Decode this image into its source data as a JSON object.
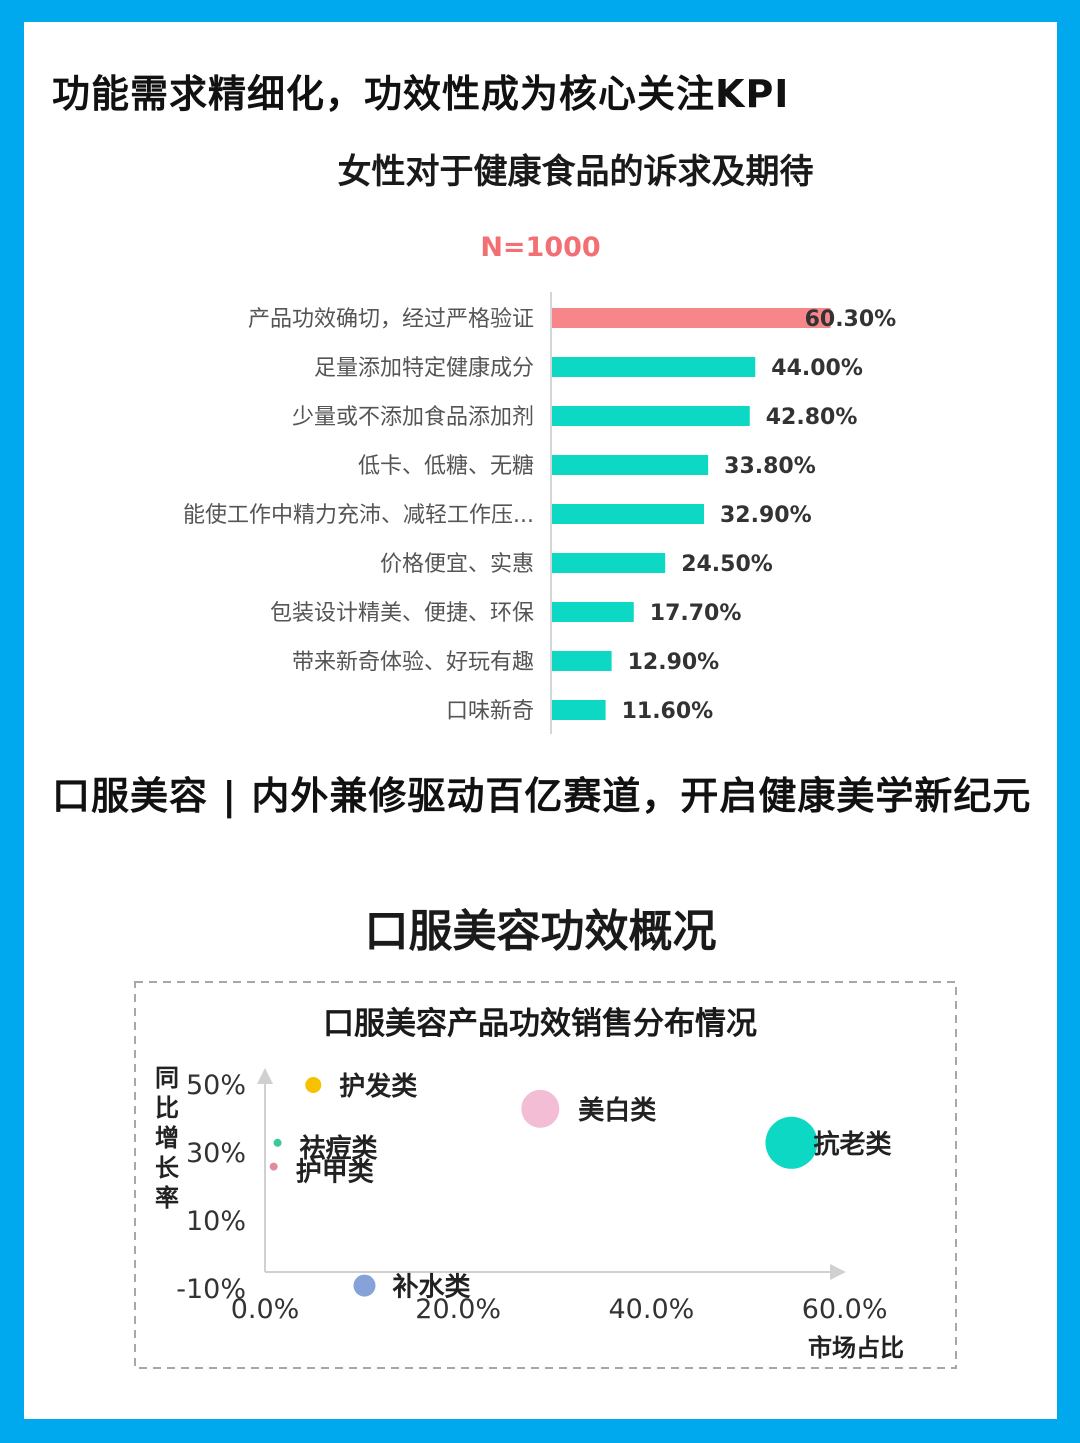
{
  "headings": {
    "section1": "功能需求精细化，功效性成为核心关注KPI",
    "section2": "口服美容 | 内外兼修驱动百亿赛道，开启健康美学新纪元"
  },
  "colors": {
    "frame": "#00a8ee",
    "bar_highlight": "#f7868b",
    "bar_default": "#0dd8c3"
  },
  "chart_data": [
    {
      "type": "bar",
      "orientation": "horizontal",
      "title": "女性对于健康食品的诉求及期待",
      "subtitle": "N=1000",
      "categories": [
        "产品功效确切，经过严格验证",
        "足量添加特定健康成分",
        "少量或不添加食品添加剂",
        "低卡、低糖、无糖",
        "能使工作中精力充沛、减轻工作压...",
        "价格便宜、实惠",
        "包装设计精美、便捷、环保",
        "带来新奇体验、好玩有趣",
        "口味新奇"
      ],
      "values": [
        60.3,
        44.0,
        42.8,
        33.8,
        32.9,
        24.5,
        17.7,
        12.9,
        11.6
      ],
      "value_labels": [
        "60.30%",
        "44.00%",
        "42.80%",
        "33.80%",
        "32.90%",
        "24.50%",
        "17.70%",
        "12.90%",
        "11.60%"
      ],
      "xlim": [
        0,
        75
      ]
    },
    {
      "type": "scatter",
      "title": "口服美容功效概况",
      "subtitle": "口服美容产品功效销售分布情况",
      "xlabel": "市场占比",
      "ylabel": "同比增长率",
      "xlim": [
        0,
        60
      ],
      "ylim": [
        -10,
        50
      ],
      "x_ticks": [
        "0.0%",
        "20.0%",
        "40.0%",
        "60.0%"
      ],
      "y_ticks": [
        "-10%",
        "10%",
        "30%",
        "50%"
      ],
      "points": [
        {
          "label": "护发类",
          "x": 5.0,
          "y": 50,
          "size": 8,
          "color": "#f8c100"
        },
        {
          "label": "美白类",
          "x": 28.5,
          "y": 43,
          "size": 19,
          "color": "#f4bdd6"
        },
        {
          "label": "抗老类",
          "x": 54.5,
          "y": 33,
          "size": 26,
          "color": "#0dd8c3"
        },
        {
          "label": "祛痘类",
          "x": 1.3,
          "y": 33,
          "size": 4,
          "color": "#3cc99a"
        },
        {
          "label": "护甲类",
          "x": 0.9,
          "y": 26,
          "size": 4,
          "color": "#e28a9c"
        },
        {
          "label": "补水类",
          "x": 10.3,
          "y": -9,
          "size": 11,
          "color": "#86a2d9"
        }
      ]
    }
  ]
}
